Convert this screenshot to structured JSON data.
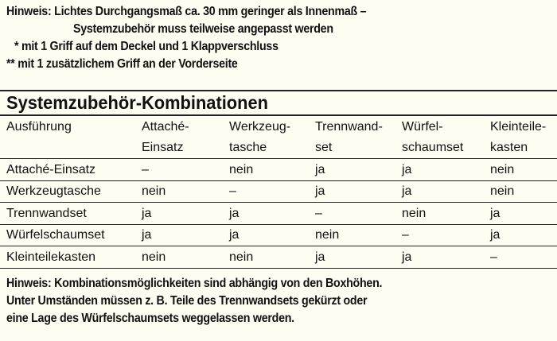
{
  "notes_top": [
    {
      "label": "Hinweis:",
      "text": "Lichtes Durchgangsmaß ca. 30 mm geringer als Innenmaß –"
    },
    {
      "label": "",
      "text": "Systemzubehör muss teilweise angepasst werden"
    },
    {
      "label": "*",
      "text": "mit 1 Griff auf dem Deckel und 1 Klappverschluss"
    },
    {
      "label": "**",
      "text": "mit 1 zusätzlichem Griff an der Vorderseite"
    }
  ],
  "table": {
    "title": "Systemzubehör-Kombinationen",
    "headers": [
      [
        "Ausführung",
        ""
      ],
      [
        "Attaché-",
        "Einsatz"
      ],
      [
        "Werkzeug-",
        "tasche"
      ],
      [
        "Trennwand-",
        "set"
      ],
      [
        "Würfel-",
        "schaumset"
      ],
      [
        "Kleinteile-",
        "kasten"
      ]
    ],
    "rows": [
      [
        "Attaché-Einsatz",
        "–",
        "nein",
        "ja",
        "ja",
        "nein"
      ],
      [
        "Werkzeugtasche",
        "nein",
        "–",
        "ja",
        "ja",
        "nein"
      ],
      [
        "Trennwandset",
        "ja",
        "ja",
        "–",
        "nein",
        "ja"
      ],
      [
        "Würfelschaumset",
        "ja",
        "ja",
        "nein",
        "–",
        "ja"
      ],
      [
        "Kleinteilekasten",
        "nein",
        "nein",
        "ja",
        "ja",
        "–"
      ]
    ]
  },
  "notes_bottom": [
    "Hinweis: Kombinationsmöglichkeiten sind abhängig von den Boxhöhen.",
    "Unter Umständen müssen z. B. Teile des Trennwandsets gekürzt oder",
    "eine Lage des Würfelschaumsets weggelassen werden."
  ],
  "colors": {
    "background": "#fffdf2",
    "text": "#111111",
    "rules": "#222222"
  }
}
